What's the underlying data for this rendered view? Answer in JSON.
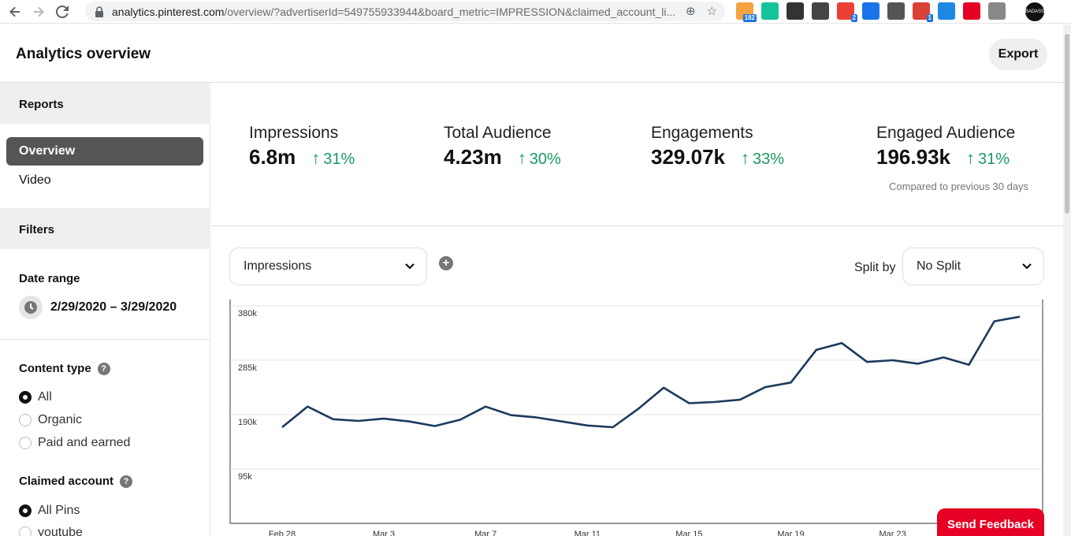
{
  "browser": {
    "url_host": "analytics.pinterest.com",
    "url_rest": "/overview/?advertiserId=549755933944&board_metric=IMPRESSION&claimed_account_li...",
    "extensions": [
      {
        "name": "rss-icon",
        "color": "#f4a340",
        "badge": "182"
      },
      {
        "name": "grammarly-icon",
        "color": "#15c39a",
        "badge": ""
      },
      {
        "name": "flag-icon",
        "color": "#333333",
        "badge": ""
      },
      {
        "name": "m-icon",
        "color": "#444444",
        "badge": ""
      },
      {
        "name": "colorzilla-icon",
        "color": "#e94235",
        "badge": "2"
      },
      {
        "name": "s-icon",
        "color": "#1a73e8",
        "badge": ""
      },
      {
        "name": "cloud-download-icon",
        "color": "#555555",
        "badge": ""
      },
      {
        "name": "todoist-icon",
        "color": "#db4035",
        "badge": "1"
      },
      {
        "name": "wing-icon",
        "color": "#1e88e5",
        "badge": ""
      },
      {
        "name": "pinterest-icon",
        "color": "#e60023",
        "badge": ""
      },
      {
        "name": "cycling-icon",
        "color": "#888888",
        "badge": ""
      }
    ]
  },
  "header": {
    "title": "Analytics overview",
    "export_label": "Export"
  },
  "sidebar": {
    "reports_label": "Reports",
    "nav": [
      {
        "label": "Overview",
        "active": true
      },
      {
        "label": "Video",
        "active": false
      }
    ],
    "filters_label": "Filters",
    "date_range_label": "Date range",
    "date_range_value": "2/29/2020 – 3/29/2020",
    "content_type_label": "Content type",
    "content_type_options": [
      {
        "label": "All",
        "checked": true
      },
      {
        "label": "Organic",
        "checked": false
      },
      {
        "label": "Paid and earned",
        "checked": false
      }
    ],
    "claimed_account_label": "Claimed account",
    "claimed_account_options": [
      {
        "label": "All Pins",
        "checked": true
      },
      {
        "label": "youtube",
        "checked": false
      }
    ]
  },
  "metrics": [
    {
      "label": "Impressions",
      "value": "6.8m",
      "change": "31%"
    },
    {
      "label": "Total Audience",
      "value": "4.23m",
      "change": "30%"
    },
    {
      "label": "Engagements",
      "value": "329.07k",
      "change": "33%"
    },
    {
      "label": "Engaged Audience",
      "value": "196.93k",
      "change": "31%"
    }
  ],
  "compare_note": "Compared to previous 30 days",
  "controls": {
    "metric_select_value": "Impressions",
    "split_by_label": "Split by",
    "split_select_value": "No Split"
  },
  "chart_data": {
    "type": "line",
    "ylim": [
      0,
      380000
    ],
    "y_ticks": [
      {
        "value": 380000,
        "label": "380k"
      },
      {
        "value": 285000,
        "label": "285k"
      },
      {
        "value": 190000,
        "label": "190k"
      },
      {
        "value": 95000,
        "label": "95k"
      }
    ],
    "x_tick_labels": [
      {
        "index": 0,
        "label": "Feb 28"
      },
      {
        "index": 4,
        "label": "Mar 3"
      },
      {
        "index": 8,
        "label": "Mar 7"
      },
      {
        "index": 12,
        "label": "Mar 11"
      },
      {
        "index": 16,
        "label": "Mar 15"
      },
      {
        "index": 20,
        "label": "Mar 19"
      },
      {
        "index": 24,
        "label": "Mar 23"
      }
    ],
    "series": [
      {
        "color": "#1b3a5c",
        "x": [
          "Feb 28",
          "Feb 29",
          "Mar 1",
          "Mar 2",
          "Mar 3",
          "Mar 4",
          "Mar 5",
          "Mar 6",
          "Mar 7",
          "Mar 8",
          "Mar 9",
          "Mar 10",
          "Mar 11",
          "Mar 12",
          "Mar 13",
          "Mar 14",
          "Mar 15",
          "Mar 16",
          "Mar 17",
          "Mar 18",
          "Mar 19",
          "Mar 20",
          "Mar 21",
          "Mar 22",
          "Mar 23",
          "Mar 24",
          "Mar 25",
          "Mar 26",
          "Mar 27",
          "Mar 28"
        ],
        "values": [
          168000,
          204000,
          182000,
          179000,
          183000,
          178000,
          170000,
          181000,
          204000,
          189000,
          185000,
          178000,
          171000,
          168000,
          200000,
          237000,
          210000,
          212000,
          216000,
          238000,
          246000,
          303000,
          315000,
          282000,
          285000,
          279000,
          290000,
          277000,
          353000,
          361000
        ]
      }
    ]
  },
  "feedback_label": "Send Feedback"
}
